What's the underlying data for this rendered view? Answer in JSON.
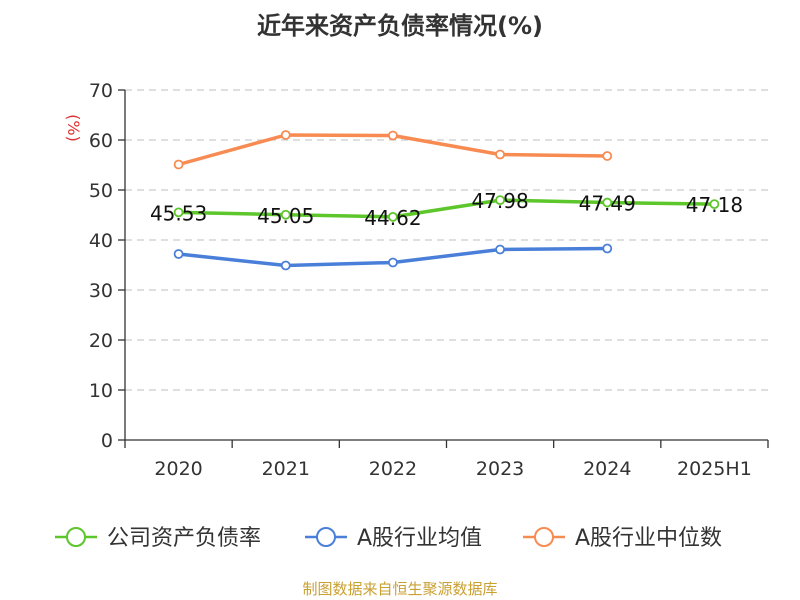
{
  "chart_data": {
    "type": "line",
    "title": "近年来资产负债率情况(%)",
    "ylabel": "(%)",
    "xlabel": "",
    "categories": [
      "2020",
      "2021",
      "2022",
      "2023",
      "2024",
      "2025H1"
    ],
    "ylim": [
      0,
      70
    ],
    "yticks": [
      0,
      10,
      20,
      30,
      40,
      50,
      60,
      70
    ],
    "grid": true,
    "legend_position": "bottom",
    "series": [
      {
        "name": "公司资产负债率",
        "color": "#5cc62b",
        "values": [
          45.53,
          45.05,
          44.62,
          47.98,
          47.49,
          47.18
        ],
        "labels": [
          "45.53",
          "45.05",
          "44.62",
          "47.98",
          "47.49",
          "47.18"
        ]
      },
      {
        "name": "A股行业均值",
        "color": "#4a7fd9",
        "values": [
          37.2,
          34.9,
          35.5,
          38.1,
          38.3,
          null
        ]
      },
      {
        "name": "A股行业中位数",
        "color": "#f78b52",
        "values": [
          55.1,
          61.0,
          60.9,
          57.1,
          56.8,
          null
        ]
      }
    ]
  },
  "colors": {
    "ylabel": "#e03030",
    "source": "#c9a032",
    "axis": "#333333",
    "grid": "#cccccc"
  },
  "source_note": "制图数据来自恒生聚源数据库"
}
